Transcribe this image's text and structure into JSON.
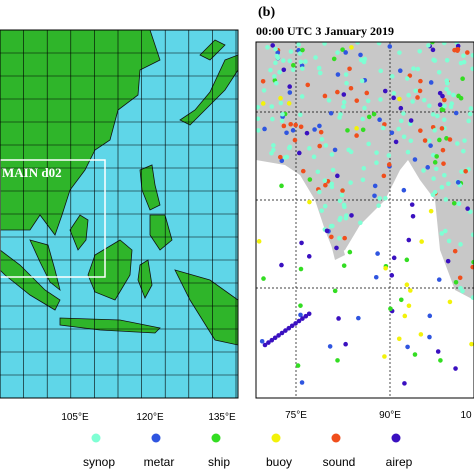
{
  "panel_a": {
    "box_label": "MAIN d02",
    "lon_labels": [
      "105°E",
      "120°E",
      "135°E"
    ]
  },
  "panel_b": {
    "label": "(b)",
    "title": "00:00 UTC 3 January 2019",
    "lon_labels": [
      "75°E",
      "90°E",
      "10"
    ]
  },
  "legend": [
    {
      "label": "synop",
      "color": "#7fffd4"
    },
    {
      "label": "metar",
      "color": "#2f55e0"
    },
    {
      "label": "ship",
      "color": "#33dd22"
    },
    {
      "label": "buoy",
      "color": "#f2f20a"
    },
    {
      "label": "sound",
      "color": "#f04e1c"
    },
    {
      "label": "airep",
      "color": "#3a10c0"
    }
  ]
}
